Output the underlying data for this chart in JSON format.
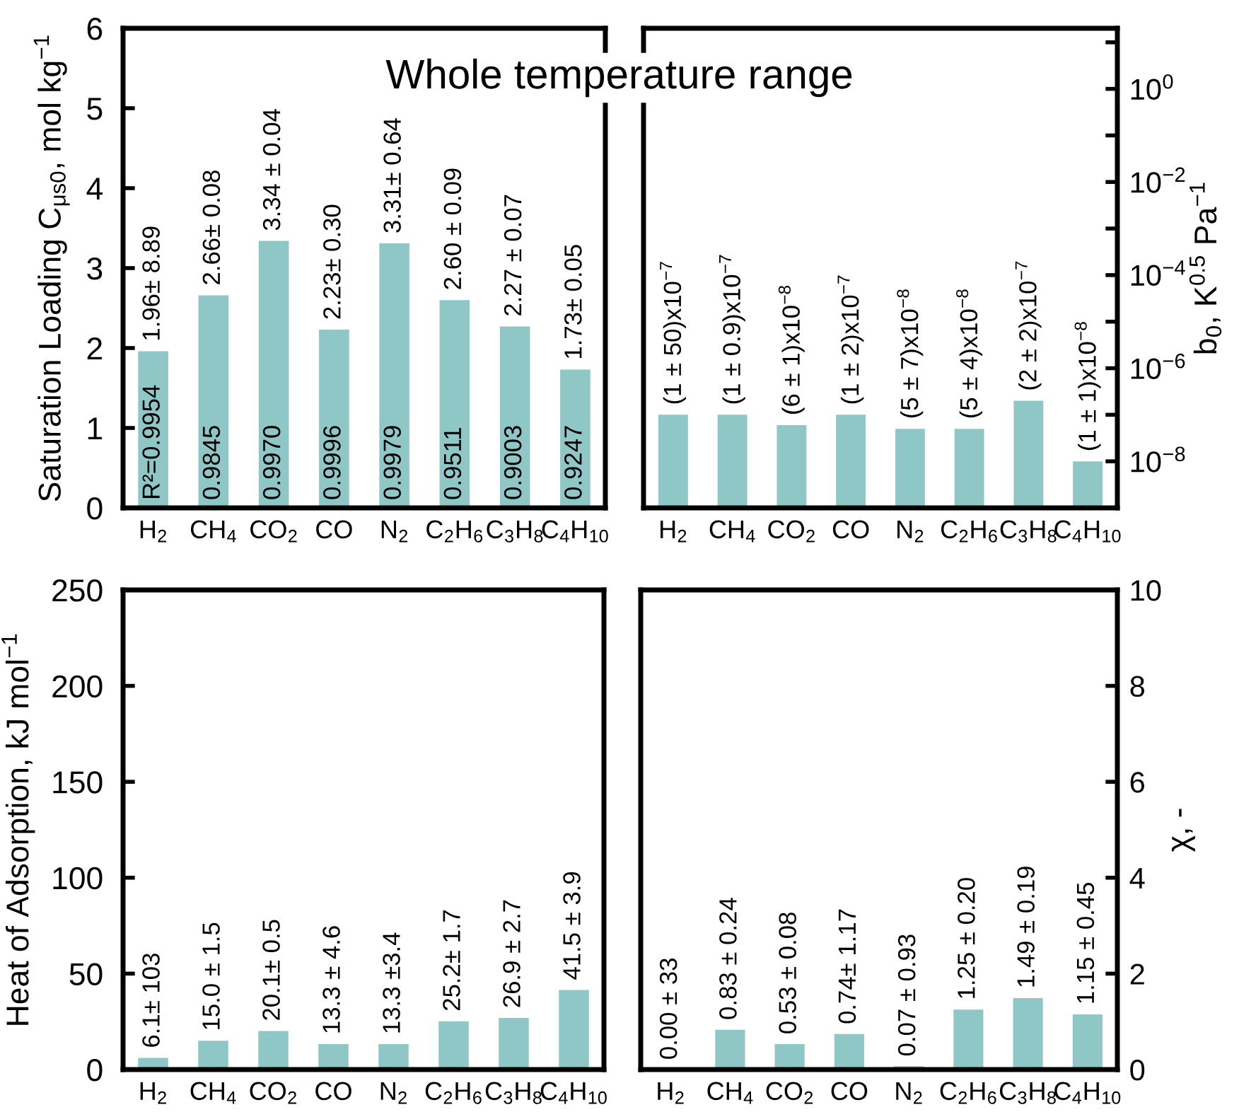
{
  "chart_data": [
    {
      "type": "bar",
      "title": "Whole temperature range",
      "ylabel": "Saturation Loading C$_{μs0}$, mol kg$^{−1}$",
      "categories": [
        "H$_{2}$",
        "CH$_{4}$",
        "CO$_{2}$",
        "CO",
        "N$_{2}$",
        "C$_{2}$H$_{6}$",
        "C$_{3}$H$_{8}$",
        "C$_{4}$H$_{10}$"
      ],
      "series": [
        {
          "color": "#8fc7c6",
          "values": [
            1.96,
            2.66,
            3.34,
            2.23,
            3.31,
            2.6,
            2.27,
            1.73
          ],
          "value_labels": [
            "1.96± 8.89",
            "2.66± 0.08",
            "3.34 ± 0.04",
            "2.23± 0.30",
            "3.31± 0.64",
            "2.60 ± 0.09",
            "2.27 ± 0.07",
            "1.73± 0.05"
          ]
        }
      ],
      "annotations": [
        "R²=0.9954",
        "0.9845",
        "0.9970",
        "0.9996",
        "0.9979",
        "0.9511",
        "0.9003",
        "0.9247"
      ],
      "ylim": [
        0,
        6
      ],
      "yticks": [
        0,
        1,
        2,
        3,
        4,
        5,
        6
      ],
      "grid": false,
      "legend": false
    },
    {
      "type": "bar",
      "y2label": "b$_{0}$, K$^{0.5}$ Pa$^{−1}$",
      "log": "y2",
      "categories": [
        "H$_{2}$",
        "CH$_{4}$",
        "CO$_{2}$",
        "CO",
        "N$_{2}$",
        "C$_{2}$H$_{6}$",
        "C$_{3}$H$_{8}$",
        "C$_{4}$H$_{10}$"
      ],
      "series": [
        {
          "color": "#8fc7c6",
          "axis": "y2",
          "values": [
            1e-07,
            1e-07,
            6e-08,
            1e-07,
            5e-08,
            5e-08,
            2e-07,
            1e-08
          ],
          "value_labels": [
            "(1 ± 50)x10$^{−7}$",
            "(1 ± 0.9)x10$^{−7}$",
            "(6 ± 1)x10$^{−8}$",
            "(1 ± 2)x10$^{−7}$",
            "(5 ± 7)x10$^{−8}$",
            "(5 ± 4)x10$^{−8}$",
            "(2 ± 2)x10$^{−7}$",
            "(1 ± 1)x10$^{−8}$"
          ]
        }
      ],
      "y2lim": [
        1e-09,
        20
      ],
      "y2ticks": [
        {
          "value": 10,
          "label": null
        },
        {
          "value": 1,
          "label": "10$^{0}$"
        },
        {
          "value": 0.1,
          "label": null
        },
        {
          "value": 0.01,
          "label": "10$^{−2}$"
        },
        {
          "value": 0.001,
          "label": null
        },
        {
          "value": 0.0001,
          "label": "10$^{−4}$"
        },
        {
          "value": 1e-05,
          "label": null
        },
        {
          "value": 1e-06,
          "label": "10$^{−6}$"
        },
        {
          "value": 1e-07,
          "label": null
        },
        {
          "value": 1e-08,
          "label": "10$^{−8}$"
        }
      ],
      "grid": false,
      "legend": false
    },
    {
      "type": "bar",
      "ylabel": "Heat of Adsorption, kJ mol$^{−1}$",
      "categories": [
        "H$_{2}$",
        "CH$_{4}$",
        "CO$_{2}$",
        "CO",
        "N$_{2}$",
        "C$_{2}$H$_{6}$",
        "C$_{3}$H$_{8}$",
        "C$_{4}$H$_{10}$"
      ],
      "series": [
        {
          "color": "#8fc7c6",
          "values": [
            6.1,
            15.0,
            20.1,
            13.3,
            13.3,
            25.2,
            26.9,
            41.5
          ],
          "value_labels": [
            "6.1± 103",
            "15.0 ± 1.5",
            "20.1± 0.5",
            "13.3 ± 4.6",
            "13.3 ±3.4",
            "25.2± 1.7",
            "26.9 ± 2.7",
            "41.5 ± 3.9"
          ]
        }
      ],
      "ylim": [
        0,
        250
      ],
      "yticks": [
        0,
        50,
        100,
        150,
        200,
        250
      ],
      "grid": false,
      "legend": false
    },
    {
      "type": "bar",
      "y2label": "χ, -",
      "categories": [
        "H$_{2}$",
        "CH$_{4}$",
        "CO$_{2}$",
        "CO",
        "N$_{2}$",
        "C$_{2}$H$_{6}$",
        "C$_{3}$H$_{8}$",
        "C$_{4}$H$_{10}$"
      ],
      "series": [
        {
          "color": "#8fc7c6",
          "axis": "y2",
          "values": [
            0.0,
            0.83,
            0.53,
            0.74,
            0.07,
            1.25,
            1.49,
            1.15
          ],
          "value_labels": [
            "0.00 ± 33",
            "0.83 ± 0.24",
            "0.53 ± 0.08",
            "0.74± 1.17",
            "0.07 ± 0.93",
            "1.25 ± 0.20",
            "1.49 ± 0.19",
            "1.15 ± 0.45"
          ]
        }
      ],
      "y2lim": [
        0,
        10
      ],
      "y2ticks": [
        0,
        2,
        4,
        6,
        8,
        10
      ],
      "grid": false,
      "legend": false
    }
  ]
}
